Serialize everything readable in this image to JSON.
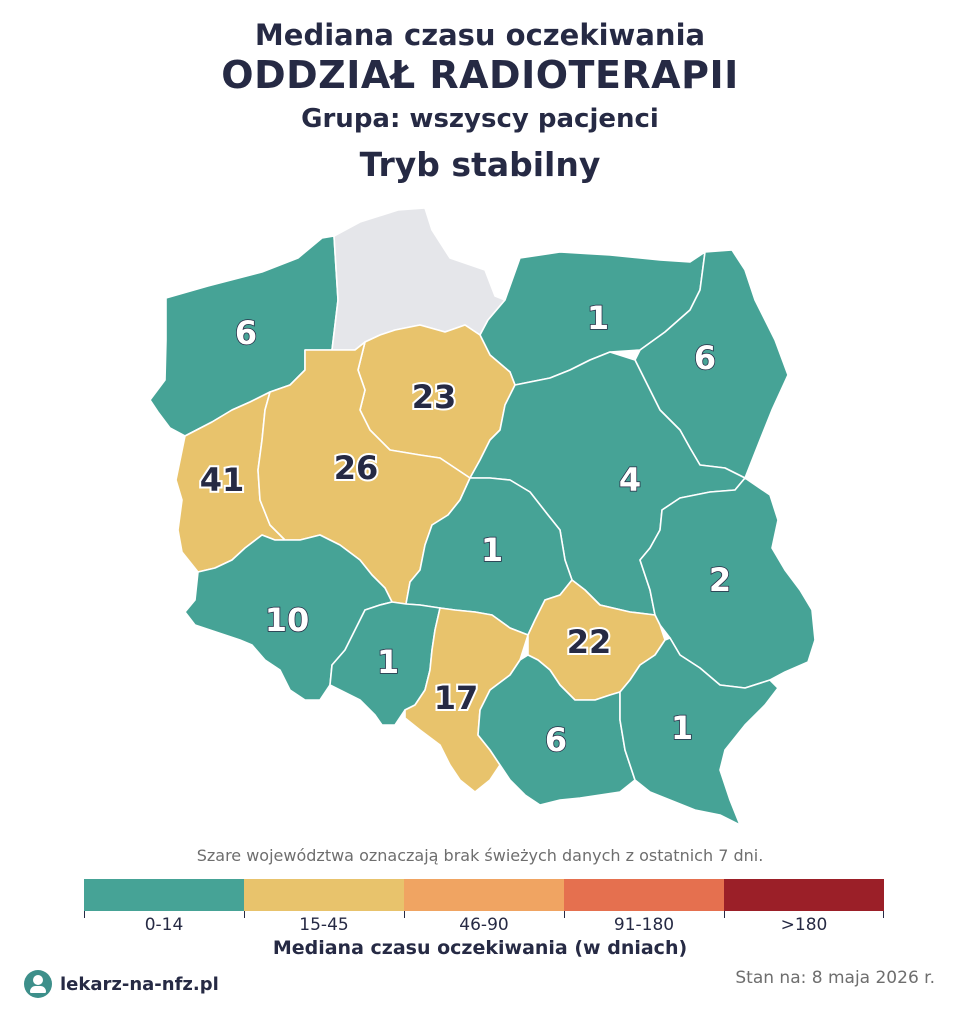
{
  "header": {
    "title_line1": "Mediana czasu oczekiwania",
    "title_line2": "ODDZIAŁ RADIOTERAPII",
    "group": "Grupa: wszyscy pacjenci",
    "mode": "Tryb stabilny"
  },
  "map": {
    "regions": [
      {
        "id": "zachodniopomorskie",
        "value": "6",
        "category": "0-14"
      },
      {
        "id": "pomorskie",
        "value": "",
        "category": "no-data"
      },
      {
        "id": "warminsko-mazurskie",
        "value": "1",
        "category": "0-14"
      },
      {
        "id": "podlaskie",
        "value": "6",
        "category": "0-14"
      },
      {
        "id": "kujawsko-pomorskie",
        "value": "23",
        "category": "15-45"
      },
      {
        "id": "lubuskie",
        "value": "41",
        "category": "15-45"
      },
      {
        "id": "wielkopolskie",
        "value": "26",
        "category": "15-45"
      },
      {
        "id": "mazowieckie",
        "value": "4",
        "category": "0-14"
      },
      {
        "id": "lodzkie",
        "value": "1",
        "category": "0-14"
      },
      {
        "id": "lubelskie",
        "value": "2",
        "category": "0-14"
      },
      {
        "id": "dolnoslaskie",
        "value": "10",
        "category": "0-14"
      },
      {
        "id": "opolskie",
        "value": "1",
        "category": "0-14"
      },
      {
        "id": "slaskie",
        "value": "17",
        "category": "15-45"
      },
      {
        "id": "swietokrzyskie",
        "value": "22",
        "category": "15-45"
      },
      {
        "id": "malopolskie",
        "value": "6",
        "category": "0-14"
      },
      {
        "id": "podkarpackie",
        "value": "1",
        "category": "0-14"
      }
    ],
    "colors": {
      "0-14": "#46a396",
      "15-45": "#e8c36c",
      "46-90": "#f0a462",
      "91-180": "#e5704f",
      ">180": "#9b1f28",
      "no-data": "#e5e6ea"
    }
  },
  "note": "Szare województwa oznaczają brak świeżych danych z ostatnich 7 dni.",
  "legend": {
    "items": [
      {
        "label": "0-14",
        "color": "#46a396"
      },
      {
        "label": "15-45",
        "color": "#e8c36c"
      },
      {
        "label": "46-90",
        "color": "#f0a462"
      },
      {
        "label": "91-180",
        "color": "#e5704f"
      },
      {
        "label": ">180",
        "color": "#9b1f28"
      }
    ],
    "title": "Mediana czasu oczekiwania (w dniach)"
  },
  "footer": {
    "brand": "lekarz-na-nfz.pl",
    "logo_icon": "doctor-icon",
    "date": "Stan na: 8 maja 2026 r."
  }
}
